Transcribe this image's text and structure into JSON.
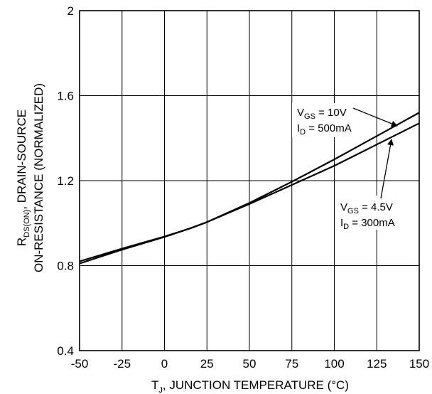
{
  "chart_data": {
    "type": "line",
    "title": "",
    "xlabel": {
      "main": "T",
      "sub": "J",
      "rest": ", JUNCTION TEMPERATURE (°C)"
    },
    "ylabel": {
      "line1": {
        "main": "R",
        "sub": "DS(ON)",
        "rest": ", DRAIN-SOURCE"
      },
      "line2": "ON-RESISTANCE (NORMALIZED)"
    },
    "xlim": [
      -50,
      150
    ],
    "ylim": [
      0.4,
      2
    ],
    "x_ticks": [
      -50,
      -25,
      0,
      25,
      50,
      75,
      100,
      125,
      150
    ],
    "y_ticks": [
      0.4,
      0.8,
      1.2,
      1.6,
      2
    ],
    "x_tick_labels": [
      "-50",
      "-25",
      "0",
      "25",
      "50",
      "75",
      "100",
      "125",
      "150"
    ],
    "y_tick_labels": [
      "0.4",
      "0.8",
      "1.2",
      "1.6",
      "2"
    ],
    "grid": true,
    "series": [
      {
        "x": [
          -50,
          -25,
          0,
          15,
          25,
          50,
          75,
          100,
          125,
          150
        ],
        "y": [
          0.81,
          0.875,
          0.935,
          0.975,
          1.005,
          1.095,
          1.195,
          1.3,
          1.41,
          1.52
        ]
      },
      {
        "x": [
          -50,
          -25,
          0,
          15,
          25,
          50,
          75,
          100,
          125,
          150
        ],
        "y": [
          0.82,
          0.88,
          0.937,
          0.975,
          1.005,
          1.09,
          1.18,
          1.27,
          1.37,
          1.47
        ]
      }
    ],
    "annotations": [
      {
        "line1": {
          "main": "V",
          "sub": "GS",
          "rest": " = 10V"
        },
        "line2": {
          "main": "I",
          "sub": "D",
          "rest": " = 500mA"
        }
      },
      {
        "line1": {
          "main": "V",
          "sub": "GS",
          "rest": " = 4.5V"
        },
        "line2": {
          "main": "I",
          "sub": "D",
          "rest": " = 300mA"
        }
      }
    ]
  }
}
